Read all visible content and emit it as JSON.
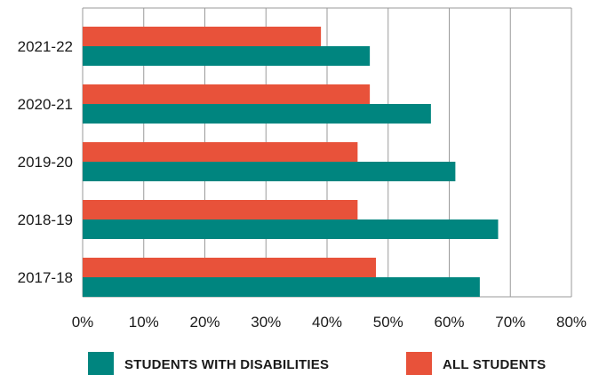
{
  "chart_data": {
    "type": "bar",
    "orientation": "horizontal",
    "categories": [
      "2021-22",
      "2020-21",
      "2019-20",
      "2018-19",
      "2017-18"
    ],
    "series": [
      {
        "name": "ALL STUDENTS",
        "color": "#e8523a",
        "values": [
          39,
          47,
          45,
          45,
          48
        ]
      },
      {
        "name": "STUDENTS WITH DISABILITIES",
        "color": "#00857f",
        "values": [
          47,
          57,
          61,
          68,
          65
        ]
      }
    ],
    "xlim": [
      0,
      80
    ],
    "xticks": [
      "0%",
      "10%",
      "20%",
      "30%",
      "40%",
      "50%",
      "60%",
      "70%",
      "80%"
    ],
    "grid": true,
    "legend_position": "bottom",
    "legend": [
      "STUDENTS WITH DISABILITIES",
      "ALL STUDENTS"
    ]
  }
}
